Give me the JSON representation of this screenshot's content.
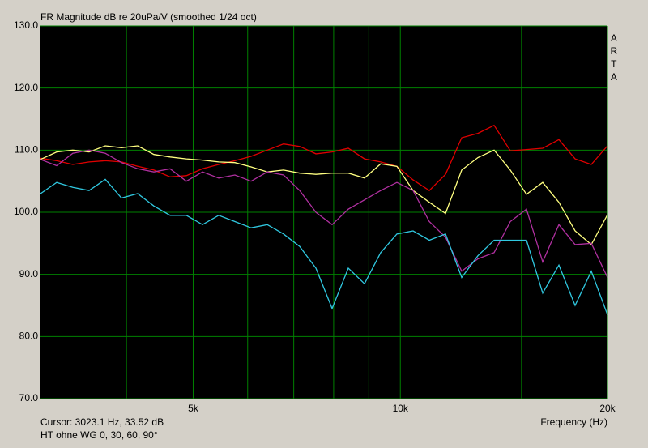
{
  "chart_data": {
    "type": "line",
    "title": "FR Magnitude dB re 20uPa/V (smoothed 1/24 oct)",
    "watermark": "ARTA",
    "x_label": "Frequency (Hz)",
    "cursor": "Cursor: 3023.1 Hz, 33.52 dB",
    "caption": "HT ohne WG 0, 30, 60, 90°",
    "x_scale": "log",
    "grid": true,
    "grid_color": "#008000",
    "plot_background": "#000000",
    "xlim": [
      3000,
      20000
    ],
    "ylim": [
      70,
      130
    ],
    "xticks": [
      {
        "value": 5000,
        "label": "5k"
      },
      {
        "value": 10000,
        "label": "10k"
      },
      {
        "value": 20000,
        "label": "20k"
      }
    ],
    "minor_xticks": [
      4000,
      6000,
      7000,
      8000,
      9000,
      15000
    ],
    "yticks": [
      {
        "value": 70,
        "label": "70.0"
      },
      {
        "value": 80,
        "label": "80.0"
      },
      {
        "value": 90,
        "label": "90.0"
      },
      {
        "value": 100,
        "label": "100.0"
      },
      {
        "value": 110,
        "label": "110.0"
      },
      {
        "value": 120,
        "label": "120.0"
      },
      {
        "value": 130,
        "label": "130.0"
      }
    ],
    "x": [
      3000,
      3167,
      3343,
      3530,
      3726,
      3934,
      4153,
      4384,
      4628,
      4886,
      5159,
      5446,
      5749,
      6070,
      6408,
      6765,
      7141,
      7539,
      7959,
      8403,
      8871,
      9365,
      9886,
      10437,
      11018,
      11632,
      12280,
      12964,
      13686,
      14449,
      15253,
      16103,
      17000,
      17947,
      18947,
      20000
    ],
    "series": [
      {
        "color": "#e00000",
        "values": [
          108.7,
          108.3,
          107.7,
          108.1,
          108.3,
          108.1,
          107.4,
          106.8,
          105.7,
          105.9,
          107.0,
          107.7,
          108.3,
          109.0,
          110.0,
          111.0,
          110.6,
          109.4,
          109.7,
          110.3,
          108.6,
          108.1,
          107.4,
          105.2,
          103.5,
          106.1,
          112.0,
          112.7,
          114.0,
          109.9,
          110.1,
          110.3,
          111.7,
          108.6,
          107.7,
          110.7
        ]
      },
      {
        "color": "#ffff80",
        "values": [
          108.5,
          109.7,
          110.0,
          109.7,
          110.7,
          110.4,
          110.7,
          109.3,
          108.9,
          108.6,
          108.4,
          108.1,
          108.0,
          107.3,
          106.5,
          106.8,
          106.3,
          106.1,
          106.3,
          106.3,
          105.5,
          107.8,
          107.4,
          103.5,
          101.6,
          99.8,
          106.8,
          108.8,
          110.0,
          106.8,
          102.9,
          104.8,
          101.6,
          97.0,
          94.8,
          99.6
        ]
      },
      {
        "color": "#b030a0",
        "values": [
          108.5,
          107.5,
          109.5,
          110.0,
          109.5,
          108.0,
          107.0,
          106.5,
          107.0,
          105.0,
          106.5,
          105.5,
          106.0,
          105.0,
          106.5,
          106.0,
          103.5,
          100.0,
          98.0,
          100.5,
          102.0,
          103.5,
          104.8,
          103.5,
          98.5,
          96.0,
          90.5,
          92.5,
          93.5,
          98.5,
          100.5,
          92.0,
          98.0,
          94.8,
          95.0,
          89.5
        ]
      },
      {
        "color": "#30c8e0",
        "values": [
          103.0,
          104.8,
          104.0,
          103.5,
          105.3,
          102.3,
          103.0,
          101.0,
          99.5,
          99.5,
          98.0,
          99.5,
          98.5,
          97.5,
          98.0,
          96.5,
          94.5,
          91.0,
          84.5,
          91.0,
          88.5,
          93.5,
          96.5,
          97.0,
          95.5,
          96.5,
          89.5,
          93.0,
          95.5,
          95.5,
          95.5,
          87.0,
          91.5,
          85.0,
          90.5,
          83.5
        ]
      }
    ]
  }
}
